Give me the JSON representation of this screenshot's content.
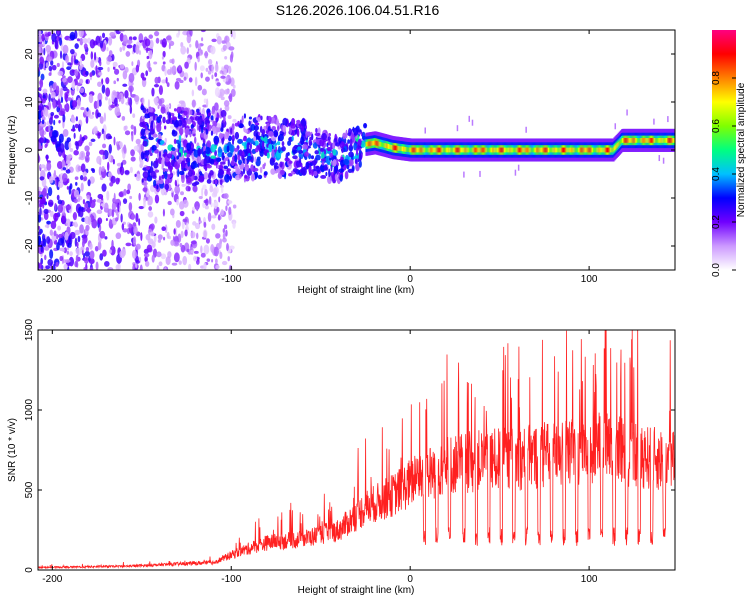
{
  "title": "S126.2026.106.04.51.R16",
  "chart_data": [
    {
      "type": "heatmap",
      "name": "spectrogram",
      "xlabel": "Height of straight line (km)",
      "ylabel": "Frequency (Hz)",
      "xlim": [
        -208,
        148
      ],
      "ylim": [
        -25,
        25
      ],
      "xticks": [
        -200,
        -100,
        0,
        100
      ],
      "xtick_labels": [
        "-200",
        "-100",
        "0",
        "100"
      ],
      "yticks": [
        -20,
        -10,
        0,
        10,
        20
      ],
      "ytick_labels": [
        "-20",
        "-10",
        "0",
        "10",
        "20"
      ],
      "colorbar": {
        "label": "Normalized spectral amplitude",
        "range": [
          0,
          1
        ],
        "ticks": [
          0,
          0.2,
          0.4,
          0.6,
          0.8
        ],
        "tick_labels": [
          "0.0",
          "0.2",
          "0.4",
          "0.6",
          "0.8"
        ],
        "colors": [
          "#ffffff",
          "#cc99ff",
          "#7000ff",
          "#0000ff",
          "#00c0ff",
          "#00ff80",
          "#80ff00",
          "#ffff00",
          "#ff8000",
          "#ff0000",
          "#ff0080"
        ]
      },
      "ridge": [
        {
          "x": -150,
          "y": 0.5
        },
        {
          "x": -100,
          "y": 0.5
        },
        {
          "x": -60,
          "y": 0.5
        },
        {
          "x": -40,
          "y": -2
        },
        {
          "x": -28,
          "y": 1
        },
        {
          "x": -20,
          "y": 1.5
        },
        {
          "x": -10,
          "y": 0.5
        },
        {
          "x": 0,
          "y": 0
        },
        {
          "x": 50,
          "y": 0
        },
        {
          "x": 100,
          "y": 0
        },
        {
          "x": 113,
          "y": 0
        },
        {
          "x": 118,
          "y": 2
        },
        {
          "x": 148,
          "y": 2
        }
      ]
    },
    {
      "type": "line",
      "name": "snr",
      "xlabel": "Height of straight line (km)",
      "ylabel": "SNR (10 * v/v)",
      "xlim": [
        -208,
        148
      ],
      "ylim": [
        0,
        1500
      ],
      "xticks": [
        -200,
        -100,
        0,
        100
      ],
      "xtick_labels": [
        "-200",
        "-100",
        "0",
        "100"
      ],
      "yticks": [
        0,
        500,
        1000,
        1500
      ],
      "ytick_labels": [
        "0",
        "500",
        "1000",
        "1500"
      ],
      "color": "#ff2020",
      "envelope": [
        {
          "x": -208,
          "y": 20
        },
        {
          "x": -160,
          "y": 30
        },
        {
          "x": -110,
          "y": 60
        },
        {
          "x": -95,
          "y": 150
        },
        {
          "x": -80,
          "y": 220
        },
        {
          "x": -60,
          "y": 250
        },
        {
          "x": -40,
          "y": 320
        },
        {
          "x": -25,
          "y": 500
        },
        {
          "x": -10,
          "y": 600
        },
        {
          "x": 0,
          "y": 700
        },
        {
          "x": 20,
          "y": 850
        },
        {
          "x": 40,
          "y": 880
        },
        {
          "x": 60,
          "y": 900
        },
        {
          "x": 80,
          "y": 930
        },
        {
          "x": 90,
          "y": 950
        },
        {
          "x": 100,
          "y": 980
        },
        {
          "x": 110,
          "y": 1000
        },
        {
          "x": 120,
          "y": 950
        },
        {
          "x": 135,
          "y": 900
        },
        {
          "x": 148,
          "y": 880
        }
      ],
      "dropouts": [
        8,
        15,
        22,
        30,
        37,
        44,
        51,
        58,
        65,
        72,
        79,
        86,
        93,
        100,
        107,
        114,
        121,
        128,
        135,
        142
      ]
    }
  ]
}
